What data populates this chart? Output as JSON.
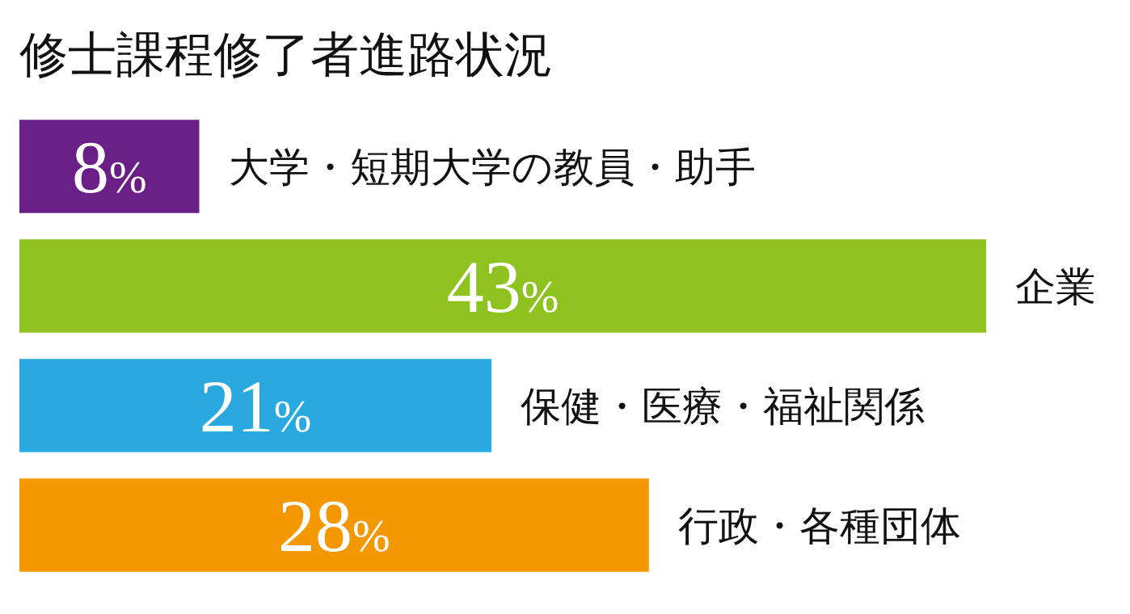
{
  "chart_data": {
    "type": "bar",
    "orientation": "horizontal",
    "title": "修士課程修了者進路状況",
    "categories": [
      "大学・短期大学の教員・助手",
      "企業",
      "保健・医療・福祉関係",
      "行政・各種団体"
    ],
    "values": [
      8,
      43,
      21,
      28
    ],
    "colors": [
      "#6a1f87",
      "#8dc21f",
      "#29a9e0",
      "#f39800"
    ],
    "value_labels": [
      "8%",
      "43%",
      "21%",
      "28%"
    ]
  }
}
